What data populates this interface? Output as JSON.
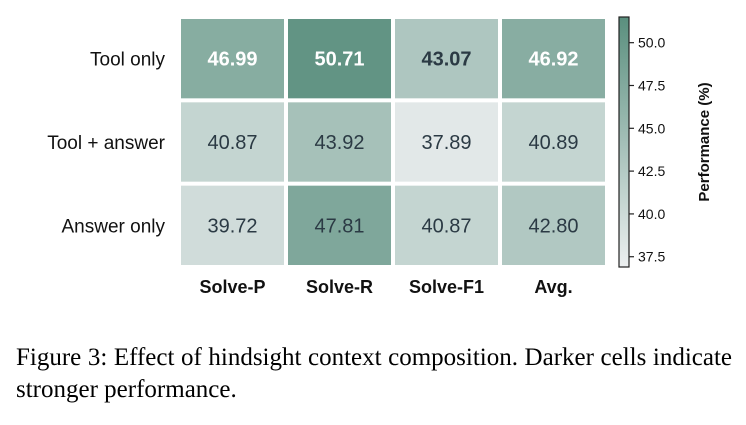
{
  "chart_data": {
    "type": "heatmap",
    "rows": [
      "Tool only",
      "Tool + answer",
      "Answer only"
    ],
    "columns": [
      "Solve-P",
      "Solve-R",
      "Solve-F1",
      "Avg."
    ],
    "values": [
      [
        46.99,
        50.71,
        43.07,
        46.92
      ],
      [
        40.87,
        43.92,
        37.89,
        40.89
      ],
      [
        39.72,
        47.81,
        40.87,
        42.8
      ]
    ],
    "cell_labels": [
      [
        "46.99",
        "50.71",
        "43.07",
        "46.92"
      ],
      [
        "40.87",
        "43.92",
        "37.89",
        "40.89"
      ],
      [
        "39.72",
        "47.81",
        "40.87",
        "42.80"
      ]
    ],
    "bold_rows": [
      0
    ],
    "colorbar": {
      "label": "Performance (%)",
      "ticks": [
        "37.5",
        "40.0",
        "42.5",
        "45.0",
        "47.5",
        "50.0"
      ],
      "tick_values": [
        37.5,
        40.0,
        42.5,
        45.0,
        47.5,
        50.0
      ],
      "range": [
        36.9,
        51.5
      ]
    },
    "colors": {
      "low": "#eceff0",
      "high": "#5a8f7e",
      "light_text": "#ffffff",
      "dark_text": "#2b3a44"
    }
  },
  "caption": {
    "text": "Figure 3: Effect of hindsight context composition. Darker cells indicate stronger performance."
  }
}
